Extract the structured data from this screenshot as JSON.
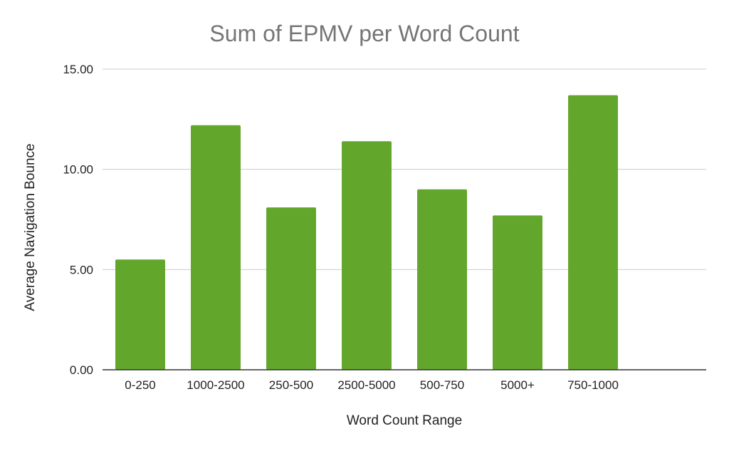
{
  "chart_data": {
    "type": "bar",
    "title": "Sum of EPMV per Word Count",
    "xlabel": "Word Count Range",
    "ylabel": "Average Navigation Bounce",
    "categories": [
      "0-250",
      "1000-2500",
      "250-500",
      "2500-5000",
      "500-750",
      "5000+",
      "750-1000"
    ],
    "values": [
      5.5,
      12.2,
      8.1,
      11.4,
      9.0,
      7.7,
      13.7
    ],
    "ylim": [
      0,
      15
    ],
    "yticks": [
      "0.00",
      "5.00",
      "10.00",
      "15.00"
    ],
    "grid": true,
    "legend": "none",
    "bar_color": "#62a62b"
  }
}
